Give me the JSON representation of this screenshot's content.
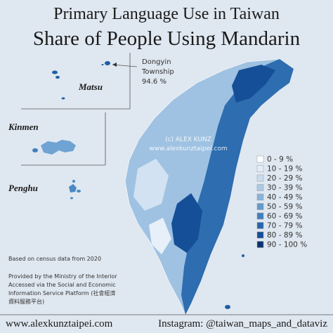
{
  "header": {
    "title": "Primary Language Use in Taiwan",
    "subtitle": "Share of People Using Mandarin"
  },
  "callout": {
    "lines": [
      "Dongyin",
      "Township",
      "94.6 %"
    ]
  },
  "islands": {
    "matsu": "Matsu",
    "kinmen": "Kinmen",
    "penghu": "Penghu"
  },
  "watermark": [
    "(c) ALEX KUNZ",
    "www.alexkunztaipei.com"
  ],
  "legend": [
    {
      "label": "0 - 9 %",
      "color": "#ffffff"
    },
    {
      "label": "10 - 19 %",
      "color": "#e4edf7"
    },
    {
      "label": "20 - 29 %",
      "color": "#c9dcef"
    },
    {
      "label": "30 - 39 %",
      "color": "#abc9e5"
    },
    {
      "label": "40 - 49 %",
      "color": "#88b4db"
    },
    {
      "label": "50 - 59 %",
      "color": "#619acd"
    },
    {
      "label": "60 - 69 %",
      "color": "#4080bf"
    },
    {
      "label": "70 - 79 %",
      "color": "#2766ad"
    },
    {
      "label": "80 - 89 %",
      "color": "#154f97"
    },
    {
      "label": "90 - 100 %",
      "color": "#0a3470"
    }
  ],
  "notes": [
    "Based on census data from 2020",
    "Provided by the Ministry of the Interior",
    "Accessed via the Social and Economic",
    "Information Service Platform (社會經濟",
    "資料服務平台)"
  ],
  "footer": {
    "website": "www.alexkunztaipei.com",
    "instagram": "Instagram: @taiwan_maps_and_dataviz"
  }
}
